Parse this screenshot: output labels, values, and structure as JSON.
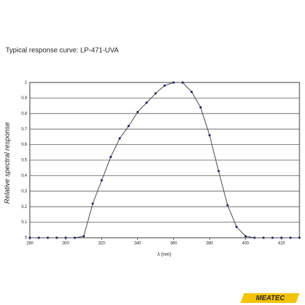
{
  "chart_data": {
    "type": "line",
    "title": "Typical response curve: LP-471-UVA",
    "x_label": "λ (nm)",
    "y_label": "Relative spectral response",
    "logo": "MEATEC",
    "x": [
      280,
      285,
      290,
      295,
      300,
      305,
      310,
      315,
      320,
      325,
      330,
      335,
      340,
      345,
      350,
      355,
      360,
      365,
      370,
      375,
      380,
      385,
      390,
      395,
      400,
      405,
      410,
      415,
      420,
      425,
      430
    ],
    "series": [
      {
        "name": "LP-471-UVA",
        "color": "#1a237e",
        "values": [
          0,
          0,
          0,
          0,
          0,
          0,
          0.01,
          0.22,
          0.37,
          0.52,
          0.64,
          0.72,
          0.81,
          0.87,
          0.93,
          0.98,
          1,
          1,
          0.94,
          0.84,
          0.66,
          0.43,
          0.21,
          0.07,
          0.01,
          0,
          0,
          0,
          0,
          0,
          0
        ]
      }
    ],
    "xlim": [
      280,
      430
    ],
    "xticks": [
      280,
      300,
      320,
      340,
      360,
      380,
      400,
      420
    ],
    "ylim": [
      0,
      1
    ],
    "yticks": [
      0,
      {
        "value": 0.1,
        "label": "0,1"
      },
      {
        "value": 0.2,
        "label": "0,2"
      },
      {
        "value": 0.3,
        "label": "0,3"
      },
      {
        "value": 0.4,
        "label": "0,4"
      },
      {
        "value": 0.5,
        "label": "0,5"
      },
      {
        "value": 0.6,
        "label": "0,6"
      },
      {
        "value": 0.7,
        "label": "0,7"
      },
      {
        "value": 0.8,
        "label": "0,8"
      },
      {
        "value": 0.9,
        "label": "0,9"
      },
      1
    ],
    "grid": true
  }
}
